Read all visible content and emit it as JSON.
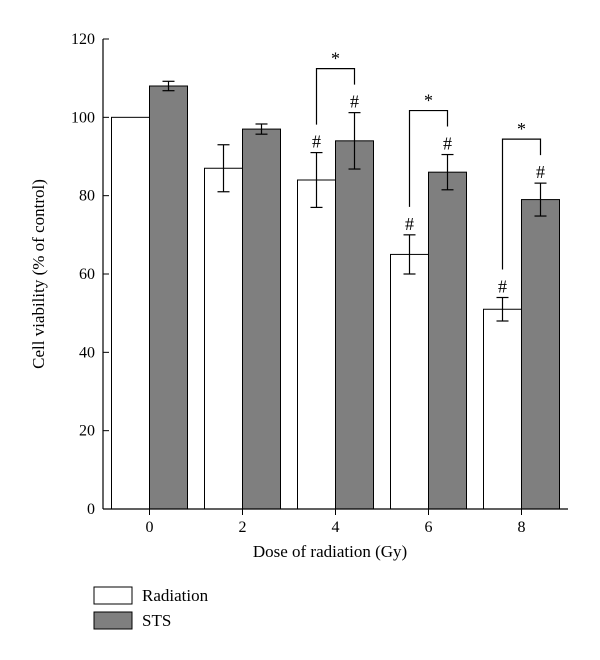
{
  "chart_data": {
    "type": "bar",
    "categories": [
      "0",
      "2",
      "4",
      "6",
      "8"
    ],
    "series": [
      {
        "name": "Radiation",
        "values": [
          100,
          87,
          84,
          65,
          51
        ],
        "errors": [
          0,
          6,
          7,
          5,
          3
        ],
        "color": "#ffffff"
      },
      {
        "name": "STS",
        "values": [
          108,
          97,
          94,
          86,
          79
        ],
        "errors": [
          1.2,
          1.3,
          7.2,
          4.5,
          4.2
        ],
        "color": "#7f7f7f"
      }
    ],
    "xlabel": "Dose of radiation (Gy)",
    "ylabel": "Cell viability (% of control)",
    "ylim": [
      0,
      120
    ],
    "yticks": [
      "0",
      "20",
      "40",
      "60",
      "80",
      "100",
      "120"
    ],
    "grid": false,
    "legend": "bottom-left",
    "hash_marks": [
      {
        "category_index": 2,
        "series_index": 0,
        "label": "#"
      },
      {
        "category_index": 2,
        "series_index": 1,
        "label": "#"
      },
      {
        "category_index": 3,
        "series_index": 0,
        "label": "#"
      },
      {
        "category_index": 3,
        "series_index": 1,
        "label": "#"
      },
      {
        "category_index": 4,
        "series_index": 0,
        "label": "#"
      },
      {
        "category_index": 4,
        "series_index": 1,
        "label": "#"
      }
    ],
    "significance": [
      {
        "category_index": 2,
        "label": "*"
      },
      {
        "category_index": 3,
        "label": "*"
      },
      {
        "category_index": 4,
        "label": "*"
      }
    ]
  }
}
